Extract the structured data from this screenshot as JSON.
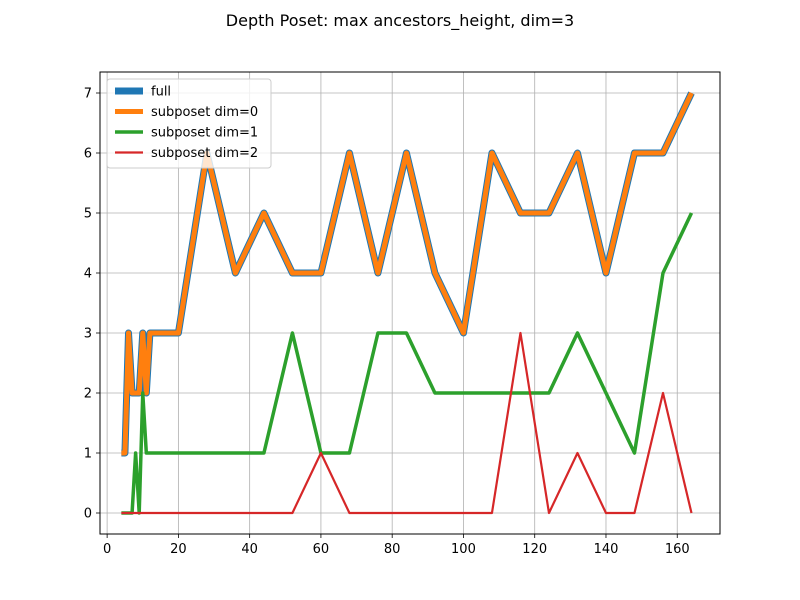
{
  "chart_data": {
    "type": "line",
    "title": "Depth Poset: max ancestors_height, dim=3",
    "xlabel": "",
    "ylabel": "",
    "xlim": [
      -2,
      172
    ],
    "ylim": [
      -0.35,
      7.35
    ],
    "xticks": [
      0,
      20,
      40,
      60,
      80,
      100,
      120,
      140,
      160
    ],
    "yticks": [
      0,
      1,
      2,
      3,
      4,
      5,
      6,
      7
    ],
    "grid": true,
    "legend_position": "top-left",
    "series": [
      {
        "name": "full",
        "color": "#1f77b4",
        "x": [
          4,
          5,
          6,
          7,
          8,
          9,
          10,
          11,
          12,
          16,
          20,
          28,
          36,
          44,
          52,
          60,
          68,
          76,
          84,
          92,
          100,
          108,
          116,
          124,
          132,
          140,
          148,
          156,
          164
        ],
        "y": [
          1,
          1,
          3,
          2,
          2,
          2,
          3,
          2,
          3,
          3,
          3,
          6,
          4,
          5,
          4,
          4,
          6,
          4,
          6,
          4,
          3,
          6,
          5,
          5,
          6,
          4,
          6,
          6,
          7
        ]
      },
      {
        "name": "subposet dim=0",
        "color": "#ff7f0e",
        "x": [
          4,
          5,
          6,
          7,
          8,
          9,
          10,
          11,
          12,
          16,
          20,
          28,
          36,
          44,
          52,
          60,
          68,
          76,
          84,
          92,
          100,
          108,
          116,
          124,
          132,
          140,
          148,
          156,
          164
        ],
        "y": [
          1,
          1,
          3,
          2,
          2,
          2,
          3,
          2,
          3,
          3,
          3,
          6,
          4,
          5,
          4,
          4,
          6,
          4,
          6,
          4,
          3,
          6,
          5,
          5,
          6,
          4,
          6,
          6,
          7
        ]
      },
      {
        "name": "subposet dim=1",
        "color": "#2ca02c",
        "x": [
          4,
          5,
          6,
          7,
          8,
          9,
          10,
          11,
          12,
          16,
          20,
          28,
          36,
          44,
          52,
          60,
          68,
          76,
          84,
          92,
          100,
          108,
          116,
          124,
          132,
          140,
          148,
          156,
          164
        ],
        "y": [
          0,
          0,
          0,
          0,
          1,
          0,
          2,
          1,
          1,
          1,
          1,
          1,
          1,
          1,
          3,
          1,
          1,
          3,
          3,
          2,
          2,
          2,
          2,
          2,
          3,
          2,
          1,
          4,
          5
        ]
      },
      {
        "name": "subposet dim=2",
        "color": "#d62728",
        "x": [
          4,
          5,
          6,
          7,
          8,
          9,
          10,
          11,
          12,
          16,
          20,
          28,
          36,
          44,
          52,
          60,
          68,
          76,
          84,
          92,
          100,
          108,
          116,
          124,
          132,
          140,
          148,
          156,
          164
        ],
        "y": [
          0,
          0,
          0,
          0,
          0,
          0,
          0,
          0,
          0,
          0,
          0,
          0,
          0,
          0,
          0,
          1,
          0,
          0,
          0,
          0,
          0,
          0,
          3,
          0,
          1,
          0,
          0,
          2,
          0
        ]
      }
    ]
  }
}
